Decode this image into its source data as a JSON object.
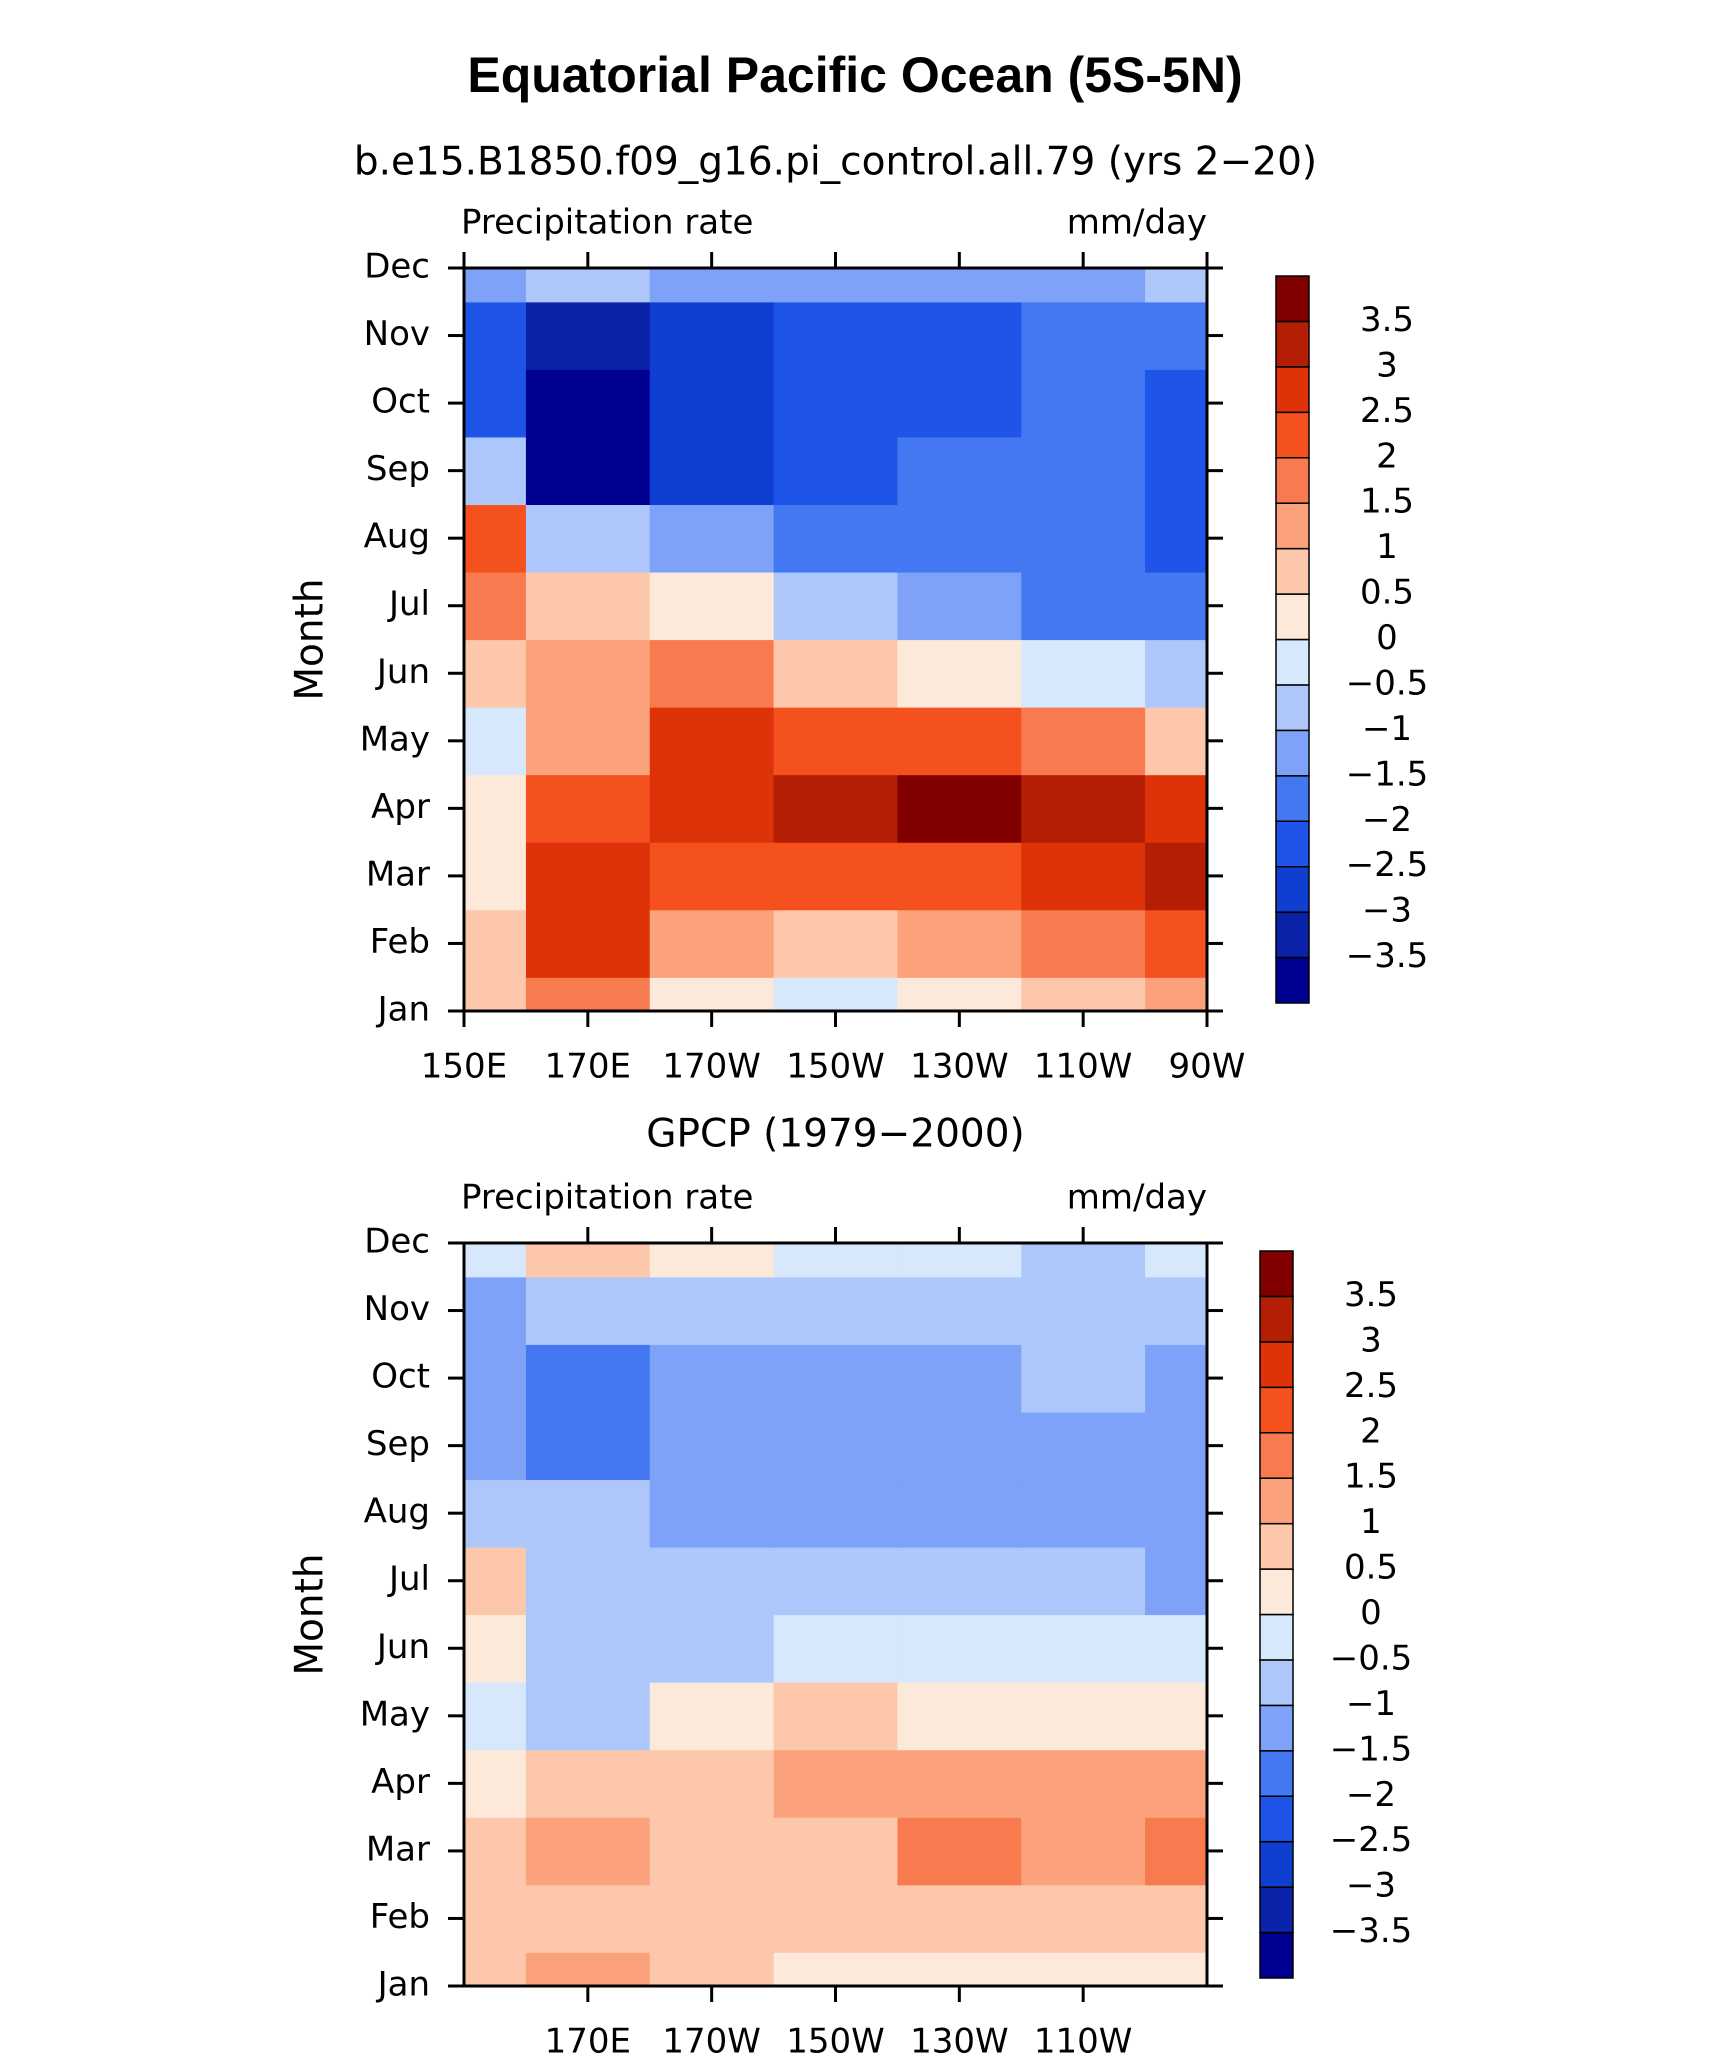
{
  "title": "Equatorial Pacific Ocean (5S-5N)",
  "chart_data": [
    {
      "type": "contour",
      "subtitle": "b.e15.B1850.f09_g16.pi_control.all.79 (yrs 2−20)",
      "left_label": "Precipitation rate",
      "right_label": "mm/day",
      "y_label": "Month",
      "categories": [
        "Jan",
        "Feb",
        "Mar",
        "Apr",
        "May",
        "Jun",
        "Jul",
        "Aug",
        "Sep",
        "Oct",
        "Nov",
        "Dec"
      ],
      "x": [
        150,
        170,
        190,
        210,
        230,
        250,
        270
      ],
      "xlim": [
        150,
        270
      ],
      "xticks": [
        {
          "value": 150,
          "label": "150E"
        },
        {
          "value": 170,
          "label": "170E"
        },
        {
          "value": 190,
          "label": "170W"
        },
        {
          "value": 210,
          "label": "150W"
        },
        {
          "value": 230,
          "label": "130W"
        },
        {
          "value": 250,
          "label": "110W"
        },
        {
          "value": 270,
          "label": "90W"
        }
      ],
      "values": [
        [
          0.8,
          2.0,
          0.3,
          -0.3,
          0.3,
          0.8,
          1.5
        ],
        [
          0.8,
          2.8,
          1.3,
          1.0,
          1.3,
          1.8,
          2.2
        ],
        [
          0.5,
          2.7,
          2.3,
          2.3,
          2.4,
          2.6,
          3.1
        ],
        [
          0.2,
          2.5,
          2.8,
          3.3,
          3.7,
          3.2,
          2.6
        ],
        [
          -0.3,
          1.3,
          2.6,
          2.5,
          2.2,
          1.6,
          0.8
        ],
        [
          0.6,
          1.3,
          1.8,
          1.0,
          0.3,
          -0.3,
          -0.8
        ],
        [
          2.0,
          0.8,
          0.3,
          -0.5,
          -1.3,
          -1.6,
          -1.7
        ],
        [
          2.5,
          -0.8,
          -1.2,
          -1.6,
          -1.7,
          -1.8,
          -2.0
        ],
        [
          -0.8,
          -3.7,
          -2.5,
          -2.0,
          -1.8,
          -1.6,
          -2.0
        ],
        [
          -2.2,
          -3.7,
          -2.7,
          -2.0,
          -2.0,
          -1.5,
          -2.2
        ],
        [
          -2.3,
          -3.0,
          -2.5,
          -2.0,
          -2.0,
          -1.7,
          -1.9
        ],
        [
          -1.0,
          -0.5,
          -1.0,
          -1.3,
          -1.3,
          -1.3,
          -0.8
        ]
      ],
      "levels": [
        {
          "value": -3.5,
          "label": "−3.5"
        },
        {
          "value": -3,
          "label": "−3"
        },
        {
          "value": -2.5,
          "label": "−2.5"
        },
        {
          "value": -2,
          "label": "−2"
        },
        {
          "value": -1.5,
          "label": "−1.5"
        },
        {
          "value": -1,
          "label": "−1"
        },
        {
          "value": -0.5,
          "label": "−0.5"
        },
        0,
        0.5,
        1,
        1.5,
        2,
        2.5,
        3,
        3.5
      ],
      "colors": [
        "#000090",
        "#0a22a8",
        "#0f3fd0",
        "#1e55e8",
        "#4378f2",
        "#7ea2f7",
        "#aec7fa",
        "#d7e7fc",
        "#fde9d9",
        "#fcc7ab",
        "#fba27d",
        "#f87a4f",
        "#f4511e",
        "#de3209",
        "#b31e04",
        "#800000"
      ]
    },
    {
      "type": "contour",
      "subtitle": "GPCP (1979−2000)",
      "left_label": "Precipitation rate",
      "right_label": "mm/day",
      "y_label": "Month",
      "categories": [
        "Jan",
        "Feb",
        "Mar",
        "Apr",
        "May",
        "Jun",
        "Jul",
        "Aug",
        "Sep",
        "Oct",
        "Nov",
        "Dec"
      ],
      "x": [
        150,
        170,
        190,
        210,
        230,
        250,
        270
      ],
      "xlim": [
        150,
        270
      ],
      "xticks": [
        {
          "value": 170,
          "label": "170E"
        },
        {
          "value": 190,
          "label": "170W"
        },
        {
          "value": 210,
          "label": "150W"
        },
        {
          "value": 230,
          "label": "130W"
        },
        {
          "value": 250,
          "label": "110W"
        }
      ],
      "values": [
        [
          0.7,
          1.2,
          0.6,
          0.2,
          0.1,
          0.1,
          0.4
        ],
        [
          0.8,
          1.0,
          0.6,
          0.6,
          0.6,
          0.7,
          1.0
        ],
        [
          0.7,
          1.1,
          0.7,
          1.0,
          1.6,
          1.5,
          1.8
        ],
        [
          0.3,
          0.7,
          0.6,
          1.2,
          1.5,
          1.5,
          1.5
        ],
        [
          -0.3,
          -0.7,
          0.4,
          0.6,
          0.4,
          0.3,
          0.3
        ],
        [
          0.5,
          -0.6,
          -0.6,
          -0.3,
          -0.2,
          -0.1,
          0.0
        ],
        [
          0.6,
          -0.6,
          -0.6,
          -0.9,
          -0.8,
          -0.9,
          -1.2
        ],
        [
          -0.6,
          -0.9,
          -1.0,
          -1.4,
          -1.4,
          -1.0,
          -1.1
        ],
        [
          -1.2,
          -1.8,
          -1.1,
          -1.3,
          -1.4,
          -1.0,
          -1.3
        ],
        [
          -1.1,
          -1.5,
          -1.0,
          -1.1,
          -1.3,
          -0.8,
          -1.1
        ],
        [
          -1.0,
          -0.7,
          -0.5,
          -0.7,
          -0.6,
          -0.5,
          -0.6
        ],
        [
          0.0,
          0.6,
          0.3,
          -0.3,
          -0.4,
          -0.5,
          -0.4
        ]
      ],
      "levels": [
        {
          "value": -3.5,
          "label": "−3.5"
        },
        {
          "value": -3,
          "label": "−3"
        },
        {
          "value": -2.5,
          "label": "−2.5"
        },
        {
          "value": -2,
          "label": "−2"
        },
        {
          "value": -1.5,
          "label": "−1.5"
        },
        {
          "value": -1,
          "label": "−1"
        },
        {
          "value": -0.5,
          "label": "−0.5"
        },
        0,
        0.5,
        1,
        1.5,
        2,
        2.5,
        3,
        3.5
      ],
      "colors": [
        "#000090",
        "#0a22a8",
        "#0f3fd0",
        "#1e55e8",
        "#4378f2",
        "#7ea2f7",
        "#aec7fa",
        "#d7e7fc",
        "#fde9d9",
        "#fcc7ab",
        "#fba27d",
        "#f87a4f",
        "#f4511e",
        "#de3209",
        "#b31e04",
        "#800000"
      ]
    }
  ]
}
